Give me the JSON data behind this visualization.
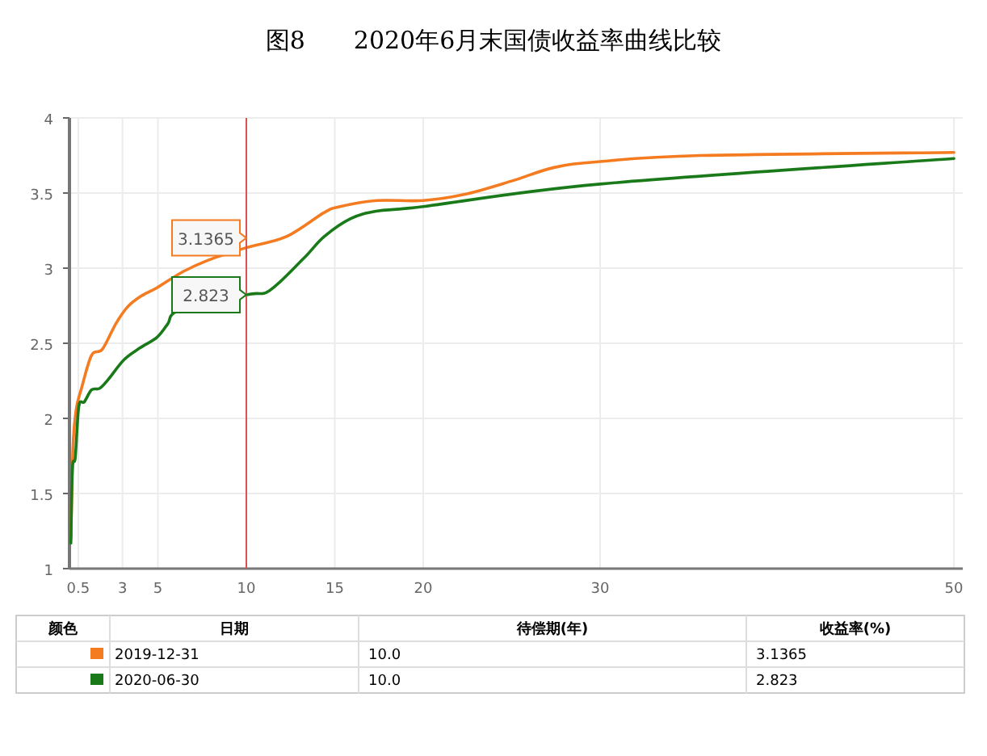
{
  "chart_data": {
    "type": "line",
    "title": "图8　　2020年6月末国债收益率曲线比较",
    "xlim": [
      0,
      50.5
    ],
    "xticks": [
      0.5,
      3,
      5,
      10,
      15,
      20,
      30,
      50
    ],
    "ylim": [
      1,
      4
    ],
    "yticks": [
      1,
      1.5,
      2,
      2.5,
      3,
      3.5,
      4
    ],
    "grid": true,
    "legend": "bottom",
    "marker": "none",
    "line_style": "solid",
    "series": [
      {
        "name": "2019-12-31",
        "color": "#f47b20",
        "x": [
          0.08,
          0.2,
          0.38,
          0.68,
          1.25,
          1.86,
          2.62,
          3.27,
          4.0,
          4.95,
          6.47,
          8.0,
          10,
          12.26,
          14.4,
          15.3,
          17.4,
          20.0,
          22.3,
          25.0,
          27.4,
          30.0,
          35.7,
          50
        ],
        "values": [
          1.2,
          1.81,
          2.06,
          2.2,
          2.42,
          2.46,
          2.63,
          2.74,
          2.81,
          2.87,
          2.98,
          3.06,
          3.1365,
          3.21,
          3.37,
          3.41,
          3.45,
          3.45,
          3.49,
          3.58,
          3.67,
          3.71,
          3.75,
          3.77
        ]
      },
      {
        "name": "2020-06-30",
        "color": "#1a7a1a",
        "x": [
          0.08,
          0.17,
          0.33,
          0.53,
          0.84,
          1.25,
          1.71,
          2.2,
          3.08,
          4.0,
          4.95,
          5.56,
          6.0,
          10,
          11.3,
          13.2,
          14.4,
          15.9,
          17.4,
          20,
          30,
          50
        ],
        "values": [
          1.17,
          1.67,
          1.74,
          2.08,
          2.11,
          2.19,
          2.2,
          2.26,
          2.39,
          2.47,
          2.54,
          2.63,
          2.71,
          2.823,
          2.85,
          3.06,
          3.21,
          3.33,
          3.38,
          3.41,
          3.56,
          3.73
        ]
      }
    ],
    "ref_lines": [
      {
        "axis": "x",
        "value": 10,
        "color": "#d9534f"
      }
    ],
    "annotations": [
      {
        "text": "3.1365",
        "x": 10,
        "y": 3.1365
      },
      {
        "text": "2.823",
        "x": 10,
        "y": 2.823
      },
      "颜色",
      "日期",
      "待偿期(年)",
      "收益率(%)",
      "10.0",
      "3.1365",
      "10.0",
      "2.823"
    ]
  }
}
